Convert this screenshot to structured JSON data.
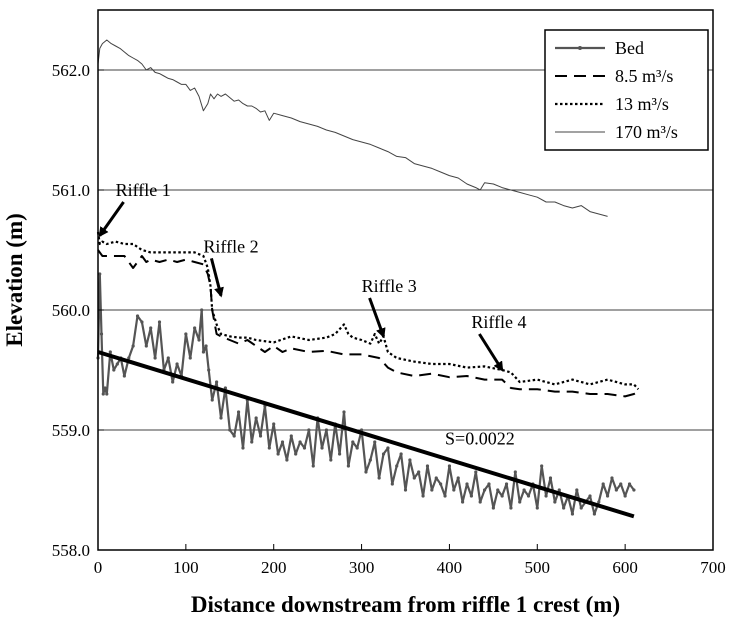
{
  "chart_data": {
    "type": "line",
    "title": "",
    "xlabel": "Distance downstream from riffle 1 crest (m)",
    "ylabel": "Elevation (m)",
    "xlim": [
      0,
      700
    ],
    "ylim": [
      558.0,
      562.5
    ],
    "xticks": [
      0,
      100,
      200,
      300,
      400,
      500,
      600,
      700
    ],
    "xtick_labels": [
      "0",
      "100",
      "200",
      "300",
      "400",
      "500",
      "600",
      "700"
    ],
    "yticks": [
      558.0,
      559.0,
      560.0,
      561.0,
      562.0
    ],
    "ytick_labels": [
      "558.0",
      "559.0",
      "560.0",
      "561.0",
      "562.0"
    ],
    "grid": "horizontal",
    "legend_position": "top-right",
    "series": [
      {
        "name": "Bed",
        "style": "marker-line",
        "color": "#555555",
        "x": [
          0,
          2,
          4,
          6,
          8,
          10,
          14,
          18,
          22,
          26,
          30,
          35,
          40,
          45,
          50,
          55,
          60,
          65,
          70,
          75,
          80,
          85,
          90,
          95,
          100,
          105,
          110,
          115,
          118,
          120,
          123,
          126,
          130,
          135,
          140,
          145,
          150,
          155,
          160,
          165,
          170,
          175,
          180,
          185,
          190,
          195,
          200,
          205,
          210,
          215,
          220,
          225,
          230,
          235,
          240,
          245,
          250,
          255,
          260,
          265,
          270,
          275,
          280,
          285,
          290,
          295,
          300,
          305,
          310,
          315,
          320,
          325,
          330,
          335,
          340,
          345,
          350,
          355,
          360,
          365,
          370,
          375,
          380,
          385,
          390,
          395,
          400,
          405,
          410,
          415,
          420,
          425,
          430,
          435,
          440,
          445,
          450,
          455,
          460,
          465,
          470,
          475,
          480,
          485,
          490,
          495,
          500,
          505,
          510,
          515,
          520,
          525,
          530,
          535,
          540,
          545,
          550,
          555,
          560,
          565,
          570,
          575,
          580,
          585,
          590,
          595,
          600,
          605,
          610
        ],
        "y": [
          559.6,
          560.3,
          559.8,
          559.3,
          559.35,
          559.3,
          559.65,
          559.5,
          559.55,
          559.6,
          559.45,
          559.6,
          559.7,
          559.95,
          559.9,
          559.7,
          559.85,
          559.6,
          559.9,
          559.5,
          559.6,
          559.4,
          559.55,
          559.45,
          559.8,
          559.6,
          559.85,
          559.75,
          560.0,
          559.65,
          559.7,
          559.5,
          559.25,
          559.4,
          559.1,
          559.35,
          559.0,
          558.95,
          559.15,
          558.85,
          559.25,
          558.9,
          559.1,
          558.95,
          559.2,
          558.85,
          559.05,
          558.8,
          558.9,
          558.75,
          558.95,
          558.8,
          558.9,
          558.85,
          559.0,
          558.7,
          559.1,
          558.85,
          559.0,
          558.75,
          559.05,
          558.8,
          559.15,
          558.7,
          558.9,
          558.85,
          559.0,
          558.65,
          558.75,
          558.9,
          558.6,
          558.8,
          558.85,
          558.55,
          558.7,
          558.8,
          558.5,
          558.75,
          558.6,
          558.65,
          558.45,
          558.7,
          558.5,
          558.6,
          558.55,
          558.45,
          558.7,
          558.5,
          558.6,
          558.4,
          558.55,
          558.45,
          558.65,
          558.4,
          558.5,
          558.55,
          558.35,
          558.5,
          558.45,
          558.55,
          558.35,
          558.65,
          558.4,
          558.5,
          558.45,
          558.55,
          558.35,
          558.7,
          558.45,
          558.6,
          558.4,
          558.5,
          558.35,
          558.45,
          558.3,
          558.5,
          558.35,
          558.4,
          558.45,
          558.3,
          558.4,
          558.55,
          558.45,
          558.6,
          558.5,
          558.55,
          558.45,
          558.55,
          558.5
        ],
        "y_display": [
          559.6,
          560.3,
          559.8,
          559.3,
          559.35,
          559.3,
          559.65,
          559.5,
          559.55,
          559.6,
          559.45,
          559.6,
          559.7,
          559.95,
          559.9,
          559.7,
          559.85,
          559.6,
          559.9,
          559.5,
          559.6,
          559.4,
          559.55,
          559.45,
          559.8,
          559.6,
          559.85,
          559.75,
          560.0,
          559.65,
          559.7,
          559.5,
          559.25,
          559.4,
          559.1,
          559.35,
          559.0,
          558.95,
          559.15,
          558.85,
          559.25,
          558.9,
          559.1,
          558.95,
          559.2,
          558.85,
          559.05,
          558.8,
          558.9,
          558.75,
          558.95,
          558.8,
          558.9,
          558.85,
          559.0,
          558.7,
          559.1,
          558.85,
          559.0,
          558.75,
          559.05,
          558.8,
          559.15,
          558.7,
          558.9,
          558.85,
          559.0,
          558.65,
          558.75,
          558.9,
          558.6,
          558.8,
          558.85,
          558.55,
          558.7,
          558.8,
          558.5,
          558.75,
          558.6,
          558.65,
          558.45,
          558.7,
          558.5,
          558.6,
          558.55,
          558.45,
          558.7,
          558.5,
          558.6,
          558.4,
          558.55,
          558.45,
          558.65,
          558.4,
          558.5,
          558.55,
          558.35,
          558.5,
          558.45,
          558.55,
          558.35,
          558.65,
          558.4,
          558.5,
          558.45,
          558.55,
          558.35,
          558.7,
          558.45,
          558.6,
          558.4,
          558.5,
          558.35,
          558.45,
          558.3,
          558.5,
          558.35,
          558.4,
          558.45,
          558.3,
          558.4,
          558.55,
          558.45,
          558.6,
          558.5,
          558.55,
          558.45,
          558.55,
          558.5
        ]
      },
      {
        "name": "8.5 m³/s",
        "style": "dashed",
        "color": "#000000",
        "x": [
          0,
          5,
          15,
          30,
          40,
          50,
          55,
          60,
          70,
          80,
          90,
          100,
          110,
          120,
          125,
          128,
          130,
          135,
          140,
          150,
          160,
          170,
          180,
          190,
          200,
          210,
          220,
          240,
          260,
          280,
          300,
          320,
          330,
          340,
          360,
          380,
          400,
          420,
          440,
          460,
          470,
          480,
          500,
          520,
          540,
          560,
          580,
          600,
          610,
          615
        ],
        "y": [
          560.5,
          560.45,
          560.45,
          560.45,
          560.35,
          560.45,
          560.4,
          560.42,
          560.4,
          560.42,
          560.4,
          560.42,
          560.4,
          560.38,
          560.3,
          560.2,
          560.0,
          559.8,
          559.78,
          559.75,
          559.72,
          559.75,
          559.7,
          559.65,
          559.7,
          559.65,
          559.68,
          559.65,
          559.66,
          559.63,
          559.63,
          559.6,
          559.52,
          559.48,
          559.45,
          559.47,
          559.44,
          559.45,
          559.42,
          559.42,
          559.35,
          559.34,
          559.34,
          559.32,
          559.32,
          559.3,
          559.3,
          559.28,
          559.3,
          559.32
        ]
      },
      {
        "name": "13 m³/s",
        "style": "dotted",
        "color": "#000000",
        "x": [
          0,
          2,
          5,
          10,
          20,
          30,
          40,
          50,
          60,
          70,
          80,
          90,
          100,
          110,
          120,
          125,
          128,
          130,
          135,
          140,
          150,
          160,
          170,
          180,
          200,
          220,
          240,
          260,
          270,
          280,
          285,
          290,
          300,
          310,
          315,
          320,
          325,
          330,
          340,
          360,
          380,
          400,
          420,
          440,
          460,
          470,
          480,
          500,
          520,
          540,
          560,
          580,
          600,
          610,
          615
        ],
        "y": [
          560.65,
          560.55,
          560.57,
          560.55,
          560.57,
          560.55,
          560.55,
          560.5,
          560.48,
          560.48,
          560.48,
          560.48,
          560.48,
          560.48,
          560.45,
          560.35,
          560.2,
          560.0,
          559.88,
          559.8,
          559.78,
          559.77,
          559.77,
          559.75,
          559.73,
          559.78,
          559.75,
          559.77,
          559.8,
          559.88,
          559.8,
          559.77,
          559.75,
          559.72,
          559.8,
          559.72,
          559.78,
          559.65,
          559.6,
          559.57,
          559.55,
          559.55,
          559.52,
          559.53,
          559.5,
          559.48,
          559.4,
          559.42,
          559.38,
          559.42,
          559.38,
          559.42,
          559.38,
          559.38,
          559.34
        ]
      },
      {
        "name": "170 m³/s",
        "style": "thin",
        "color": "#444444",
        "x": [
          0,
          2,
          5,
          10,
          15,
          20,
          25,
          30,
          35,
          40,
          45,
          50,
          55,
          60,
          65,
          70,
          75,
          80,
          85,
          90,
          95,
          100,
          105,
          110,
          115,
          120,
          125,
          128,
          132,
          136,
          140,
          145,
          150,
          155,
          160,
          165,
          170,
          175,
          180,
          185,
          190,
          195,
          200,
          210,
          220,
          230,
          240,
          250,
          260,
          270,
          280,
          290,
          300,
          310,
          320,
          330,
          340,
          350,
          360,
          370,
          380,
          390,
          400,
          410,
          420,
          430,
          435,
          440,
          450,
          460,
          470,
          480,
          490,
          500,
          510,
          520,
          530,
          540,
          550,
          560,
          570,
          580
        ],
        "y": [
          562.05,
          562.18,
          562.22,
          562.25,
          562.22,
          562.2,
          562.18,
          562.15,
          562.12,
          562.1,
          562.08,
          562.05,
          562.0,
          562.02,
          561.98,
          561.97,
          561.95,
          561.93,
          561.92,
          561.9,
          561.88,
          561.88,
          561.83,
          561.85,
          561.78,
          561.66,
          561.72,
          561.8,
          561.76,
          561.8,
          561.78,
          561.8,
          561.77,
          561.74,
          561.75,
          561.72,
          561.7,
          561.7,
          561.68,
          561.65,
          561.66,
          561.58,
          561.64,
          561.62,
          561.6,
          561.57,
          561.55,
          561.53,
          561.5,
          561.48,
          561.45,
          561.42,
          561.4,
          561.38,
          561.35,
          561.32,
          561.28,
          561.27,
          561.22,
          561.2,
          561.18,
          561.15,
          561.12,
          561.1,
          561.05,
          561.02,
          561.0,
          561.06,
          561.05,
          561.02,
          561.0,
          560.98,
          560.96,
          560.94,
          560.9,
          560.9,
          560.87,
          560.85,
          560.87,
          560.82,
          560.8,
          560.78
        ]
      },
      {
        "name": "",
        "style": "thick-trend",
        "color": "#000000",
        "x": [
          0,
          610
        ],
        "y": [
          559.65,
          558.28
        ]
      }
    ],
    "annotations": [
      {
        "text": "Riffle 1",
        "x": 20,
        "y": 560.95,
        "arrow_to": [
          2,
          560.62
        ]
      },
      {
        "text": "Riffle 2",
        "x": 120,
        "y": 560.48,
        "arrow_to": [
          140,
          560.12
        ]
      },
      {
        "text": "Riffle 3",
        "x": 300,
        "y": 560.15,
        "arrow_to": [
          325,
          559.78
        ]
      },
      {
        "text": "Riffle 4",
        "x": 425,
        "y": 559.85,
        "arrow_to": [
          460,
          559.5
        ]
      },
      {
        "text": "S=0.0022",
        "x": 395,
        "y": 558.88,
        "arrow_to": null
      }
    ]
  }
}
